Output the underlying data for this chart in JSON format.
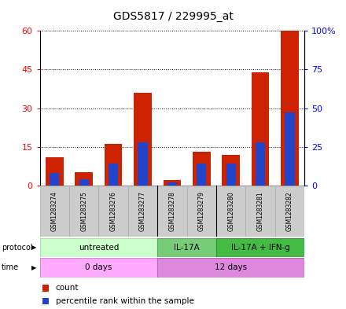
{
  "title": "GDS5817 / 229995_at",
  "samples": [
    "GSM1283274",
    "GSM1283275",
    "GSM1283276",
    "GSM1283277",
    "GSM1283278",
    "GSM1283279",
    "GSM1283280",
    "GSM1283281",
    "GSM1283282"
  ],
  "counts": [
    11,
    5,
    16,
    36,
    2,
    13,
    12,
    44,
    60
  ],
  "percentile": [
    8,
    4,
    14,
    28,
    2,
    14,
    14,
    28,
    47
  ],
  "ylim_left": [
    0,
    60
  ],
  "yticks_left": [
    0,
    15,
    30,
    45,
    60
  ],
  "yticks_right": [
    0,
    25,
    50,
    75,
    100
  ],
  "ytick_labels_right": [
    "0",
    "25",
    "50",
    "75",
    "100%"
  ],
  "bar_color": "#cc2200",
  "percentile_color": "#2244cc",
  "bar_width": 0.6,
  "protocol_groups": [
    {
      "label": "untreated",
      "start": 0,
      "end": 4,
      "color": "#ccffcc",
      "edge_color": "#aaddaa"
    },
    {
      "label": "IL-17A",
      "start": 4,
      "end": 6,
      "color": "#77cc77",
      "edge_color": "#55aa55"
    },
    {
      "label": "IL-17A + IFN-g",
      "start": 6,
      "end": 9,
      "color": "#44bb44",
      "edge_color": "#229922"
    }
  ],
  "time_groups": [
    {
      "label": "0 days",
      "start": 0,
      "end": 4,
      "color": "#ffaaff",
      "edge_color": "#dd88dd"
    },
    {
      "label": "12 days",
      "start": 4,
      "end": 9,
      "color": "#dd88dd",
      "edge_color": "#bb66bb"
    }
  ],
  "sample_box_color": "#cccccc",
  "sample_box_edge": "#aaaaaa",
  "fig_bg": "#ffffff"
}
